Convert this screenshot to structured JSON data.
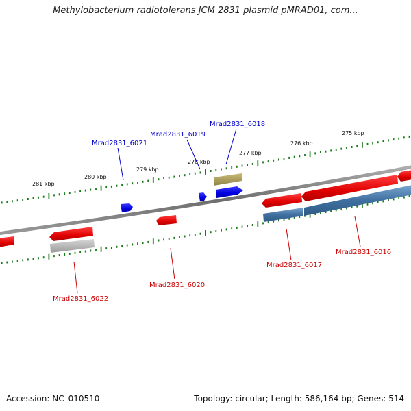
{
  "title": "Methylobacterium radiotolerans JCM 2831 plasmid pMRAD01, com...",
  "footer": {
    "accession": "Accession: NC_010510",
    "stats": "Topology: circular; Length: 586,164 bp; Genes: 514"
  },
  "scale": {
    "ticks": [
      "281 kbp",
      "280 kbp",
      "279 kbp",
      "278 kbp",
      "277 kbp",
      "276 kbp",
      "275 kbp"
    ],
    "tick_color": "#1a7a1a"
  },
  "genes": {
    "forward": [
      {
        "label": "Mrad2831_6021",
        "color": "#0000dd"
      },
      {
        "label": "Mrad2831_6019",
        "color": "#0000dd"
      },
      {
        "label": "Mrad2831_6018",
        "color": "#0000dd"
      }
    ],
    "reverse": [
      {
        "label": "Mrad2831_6022",
        "color": "#cc0000"
      },
      {
        "label": "Mrad2831_6020",
        "color": "#cc0000"
      },
      {
        "label": "Mrad2831_6017",
        "color": "#cc0000"
      },
      {
        "label": "Mrad2831_6016",
        "color": "#cc0000"
      }
    ]
  },
  "colors": {
    "backbone": "#7a7a7a",
    "forward_gene": "#0000ee",
    "reverse_gene": "#ee0000",
    "feature_olive": "#a89a55",
    "feature_gray": "#b5b5b5",
    "feature_blue": "#4a78a8"
  }
}
